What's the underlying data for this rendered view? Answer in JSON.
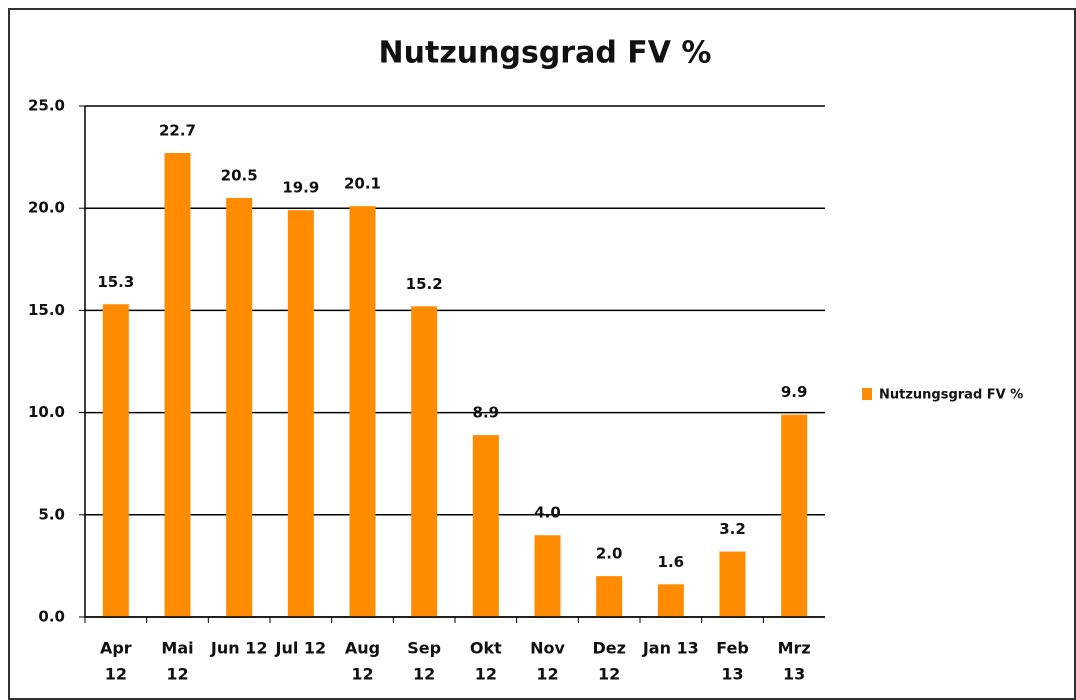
{
  "chart_data": {
    "type": "bar",
    "title": "Nutzungsgrad FV %",
    "categories": [
      [
        "Apr",
        "12"
      ],
      [
        "Mai",
        "12"
      ],
      [
        "Jun 12"
      ],
      [
        "Jul 12"
      ],
      [
        "Aug",
        "12"
      ],
      [
        "Sep",
        "12"
      ],
      [
        "Okt",
        "12"
      ],
      [
        "Nov",
        "12"
      ],
      [
        "Dez",
        "12"
      ],
      [
        "Jan 13"
      ],
      [
        "Feb",
        "13"
      ],
      [
        "Mrz",
        "13"
      ]
    ],
    "series": [
      {
        "name": "Nutzungsgrad FV %",
        "color": "#ff8c00",
        "values": [
          15.3,
          22.7,
          20.5,
          19.9,
          20.1,
          15.2,
          8.9,
          4.0,
          2.0,
          1.6,
          3.2,
          9.9
        ],
        "value_labels": [
          "15.3",
          "22.7",
          "20.5",
          "19.9",
          "20.1",
          "15.2",
          "8.9",
          "4.0",
          "2.0",
          "1.6",
          "3.2",
          "9.9"
        ]
      }
    ],
    "ylim": [
      0,
      25
    ],
    "yticks": [
      {
        "value": 0,
        "label": "0.0"
      },
      {
        "value": 5,
        "label": "5.0"
      },
      {
        "value": 10,
        "label": "10.0"
      },
      {
        "value": 15,
        "label": "15.0"
      },
      {
        "value": 20,
        "label": "20.0"
      },
      {
        "value": 25,
        "label": "25.0"
      }
    ],
    "grid": true,
    "legend": "right"
  }
}
